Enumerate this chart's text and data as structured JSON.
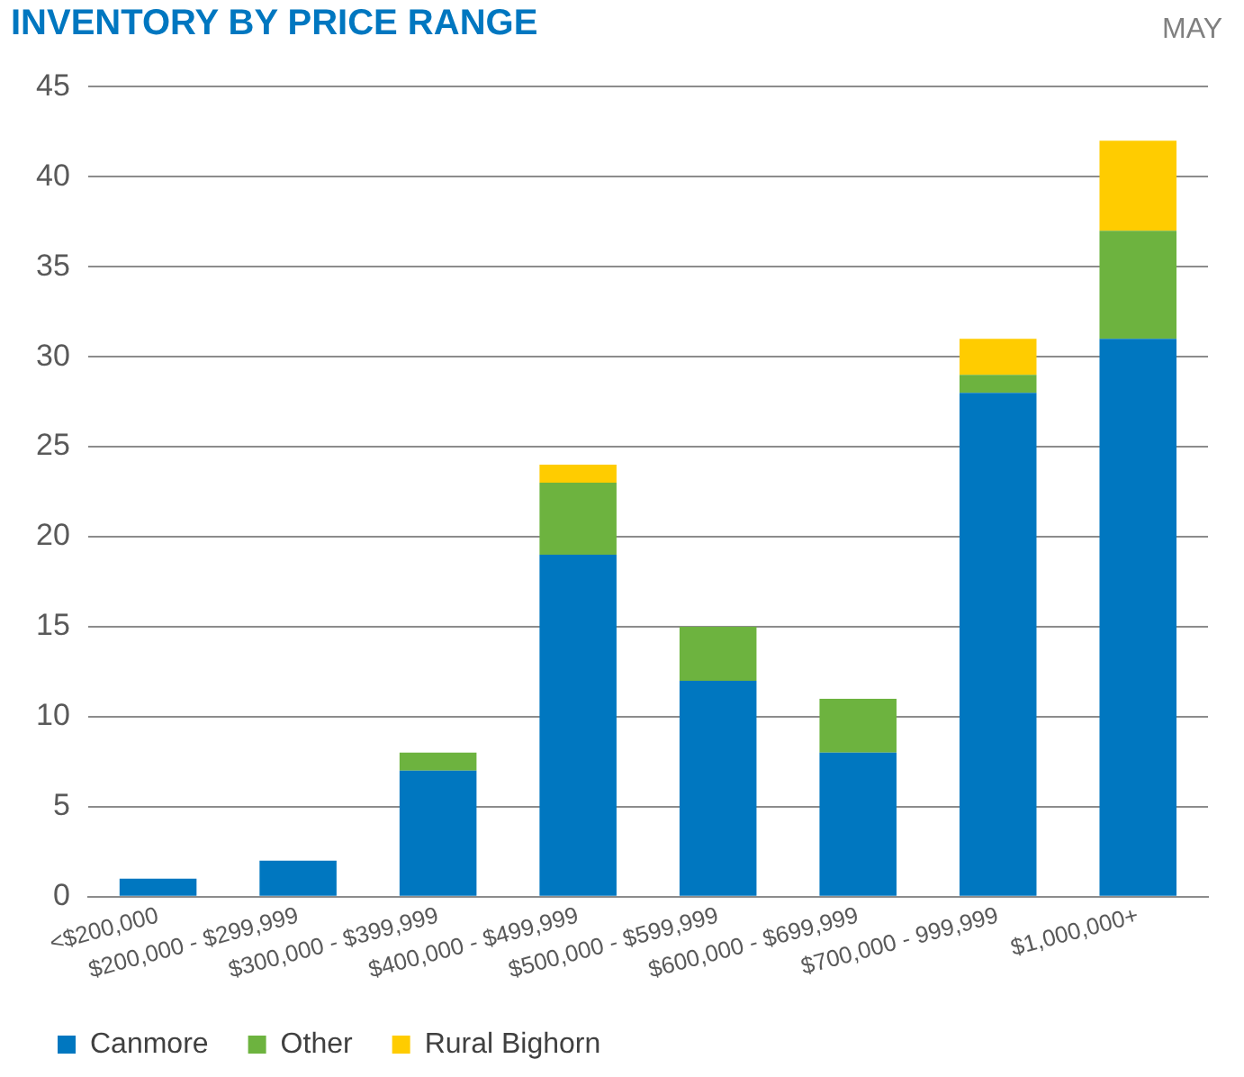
{
  "chart_data": {
    "type": "bar",
    "title": "INVENTORY BY PRICE RANGE",
    "subtitle": "MAY",
    "stacked": true,
    "categories": [
      "<$200,000",
      "$200,000 - $299,999",
      "$300,000 - $399,999",
      "$400,000 - $499,999",
      "$500,000 - $599,999",
      "$600,000 - $699,999",
      "$700,000 - 999,999",
      "$1,000,000+"
    ],
    "series": [
      {
        "name": "Canmore",
        "color": "#0077c0",
        "values": [
          1,
          2,
          7,
          19,
          12,
          8,
          28,
          31
        ]
      },
      {
        "name": "Other",
        "color": "#6db33f",
        "values": [
          0,
          0,
          1,
          4,
          3,
          3,
          1,
          6
        ]
      },
      {
        "name": "Rural Bighorn",
        "color": "#ffcc00",
        "values": [
          0,
          0,
          0,
          1,
          0,
          0,
          2,
          5
        ]
      }
    ],
    "ylim": [
      0,
      45
    ],
    "yticks": [
      0,
      5,
      10,
      15,
      20,
      25,
      30,
      35,
      40,
      45
    ],
    "grid": "y",
    "legend": "bottom left"
  }
}
